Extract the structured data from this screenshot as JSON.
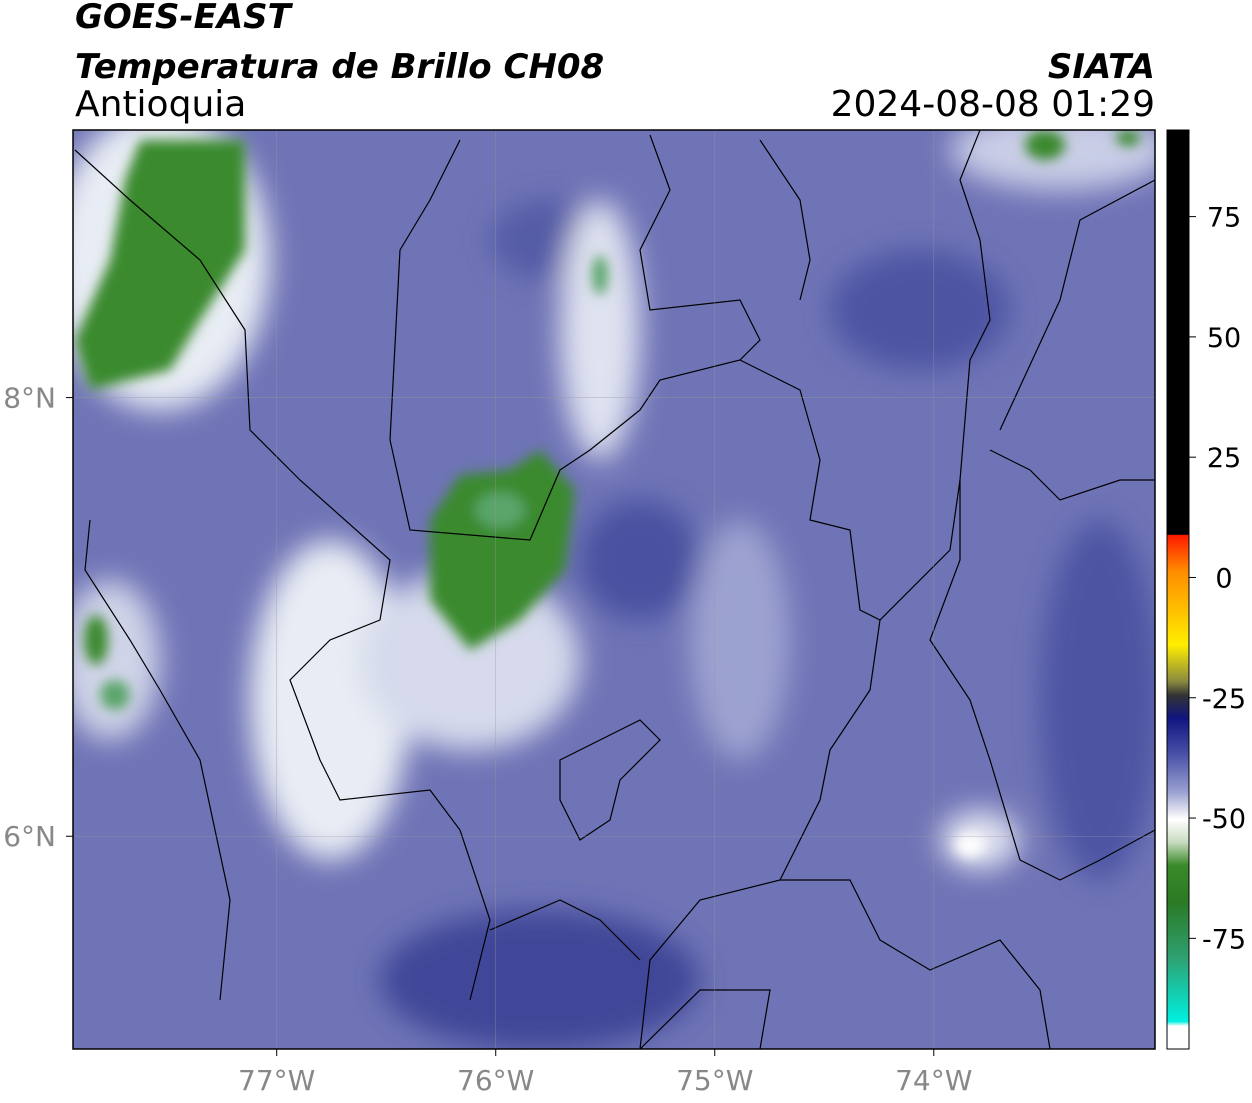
{
  "header": {
    "satellite": "GOES-EAST",
    "product": "Temperatura de Brillo CH08",
    "region": "Antioquia",
    "source": "SIATA",
    "datetime": "2024-08-08 01:29"
  },
  "map": {
    "xlim": [
      -77.93,
      -72.99
    ],
    "ylim": [
      5.03,
      9.22
    ],
    "xticks": [
      {
        "value": -77,
        "label": "77°W"
      },
      {
        "value": -76,
        "label": "76°W"
      },
      {
        "value": -75,
        "label": "75°W"
      },
      {
        "value": -74,
        "label": "74°W"
      }
    ],
    "yticks": [
      {
        "value": 8,
        "label": "8°N"
      },
      {
        "value": 6,
        "label": "6°N"
      }
    ],
    "grid": true
  },
  "colorbar": {
    "ylim": [
      -98,
      93
    ],
    "yticks": [
      75,
      50,
      25,
      0,
      -25,
      -50,
      -75
    ]
  }
}
